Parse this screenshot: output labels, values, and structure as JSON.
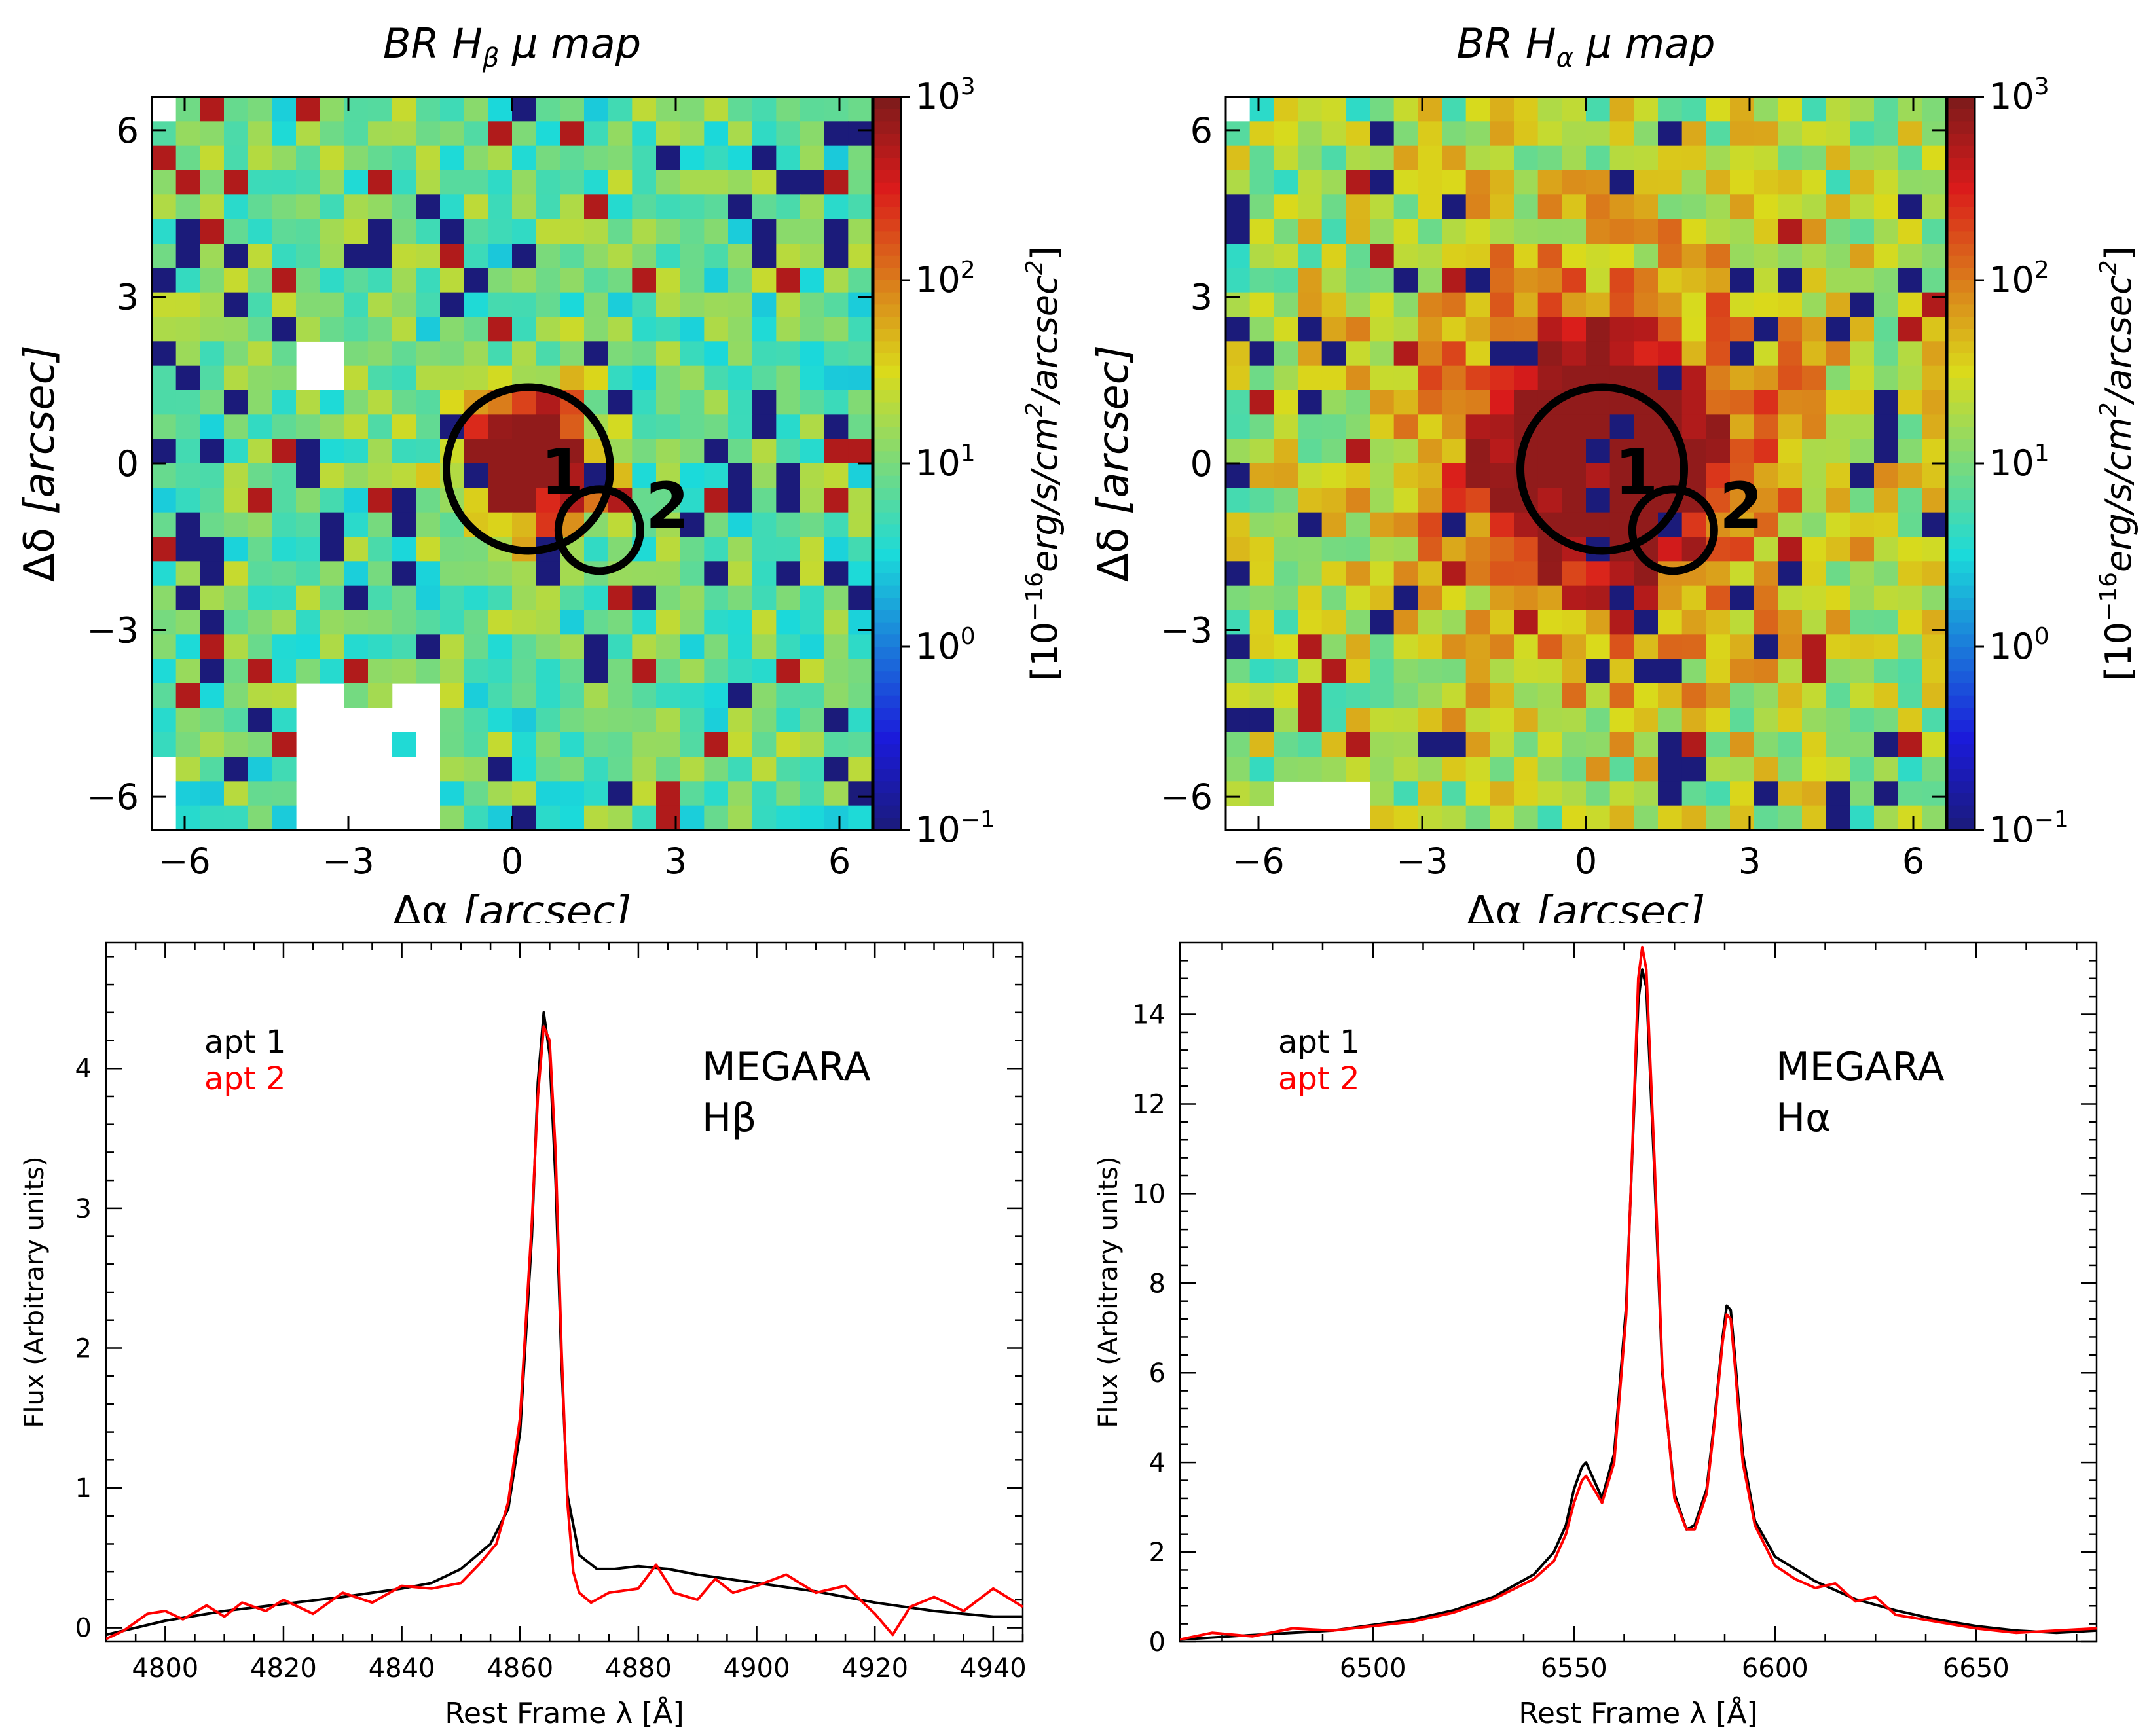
{
  "chart_data": [
    {
      "type": "heatmap",
      "title": "BR H",
      "title_sub": "β",
      "title_tail": " μ map",
      "xlabel_sym": "Δα",
      "xlabel_unit": "[arcsec]",
      "ylabel_sym": "Δδ",
      "ylabel_unit": "[arcsec]",
      "xlim": [
        -6.6,
        6.6
      ],
      "ylim": [
        -6.6,
        6.6
      ],
      "xticks": [
        -6,
        -3,
        0,
        3,
        6
      ],
      "yticks": [
        -6,
        -3,
        0,
        3,
        6
      ],
      "xtick_labels": [
        "−6",
        "−3",
        "0",
        "3",
        "6"
      ],
      "ytick_labels": [
        "−6",
        "−3",
        "0",
        "3",
        "6"
      ],
      "colorbar": {
        "label_pre": "[10",
        "label_exp": "−16",
        "label_mid": "erg/s/cm",
        "label_exp2": "2",
        "label_mid2": "/arcsec",
        "label_exp3": "2",
        "label_post": "]",
        "scale": "log",
        "range": [
          0.1,
          1000
        ],
        "ticks": [
          {
            "base": "10",
            "exp": "3"
          },
          {
            "base": "10",
            "exp": "2"
          },
          {
            "base": "10",
            "exp": "1"
          },
          {
            "base": "10",
            "exp": "0"
          },
          {
            "base": "10",
            "exp": "−1"
          }
        ],
        "colormap": "jet"
      },
      "peak_center": [
        0.3,
        0.1
      ],
      "peak_value": 250,
      "apertures": [
        {
          "label": "1",
          "x": 0.3,
          "y": -0.1,
          "r": 1.5
        },
        {
          "label": "2",
          "x": 1.6,
          "y": -1.2,
          "r": 0.75
        }
      ]
    },
    {
      "type": "heatmap",
      "title": "BR H",
      "title_sub": "α",
      "title_tail": " μ map",
      "xlabel_sym": "Δα",
      "xlabel_unit": "[arcsec]",
      "ylabel_sym": "Δδ",
      "ylabel_unit": "[arcsec]",
      "xlim": [
        -6.6,
        6.6
      ],
      "ylim": [
        -6.6,
        6.6
      ],
      "xticks": [
        -6,
        -3,
        0,
        3,
        6
      ],
      "yticks": [
        -6,
        -3,
        0,
        3,
        6
      ],
      "xtick_labels": [
        "−6",
        "−3",
        "0",
        "3",
        "6"
      ],
      "ytick_labels": [
        "−6",
        "−3",
        "0",
        "3",
        "6"
      ],
      "colorbar": {
        "label_pre": "[10",
        "label_exp": "−16",
        "label_mid": "erg/s/cm",
        "label_exp2": "2",
        "label_mid2": "/arcsec",
        "label_exp3": "2",
        "label_post": "]",
        "scale": "log",
        "range": [
          0.1,
          1000
        ],
        "ticks": [
          {
            "base": "10",
            "exp": "3"
          },
          {
            "base": "10",
            "exp": "2"
          },
          {
            "base": "10",
            "exp": "1"
          },
          {
            "base": "10",
            "exp": "0"
          },
          {
            "base": "10",
            "exp": "−1"
          }
        ],
        "colormap": "jet"
      },
      "peak_center": [
        0.3,
        0.1
      ],
      "peak_value": 400,
      "apertures": [
        {
          "label": "1",
          "x": 0.3,
          "y": -0.1,
          "r": 1.5
        },
        {
          "label": "2",
          "x": 1.6,
          "y": -1.2,
          "r": 0.75
        }
      ]
    },
    {
      "type": "line",
      "xlabel": "Rest Frame λ [Å]",
      "ylabel": "Flux (Arbitrary units)",
      "xlim": [
        4790,
        4945
      ],
      "ylim": [
        -0.1,
        4.9
      ],
      "xticks": [
        4800,
        4820,
        4840,
        4860,
        4880,
        4900,
        4920,
        4940
      ],
      "yticks": [
        0,
        1,
        2,
        3,
        4
      ],
      "annotation": [
        "MEGARA",
        "Hβ"
      ],
      "series": [
        {
          "name": "apt 1",
          "color": "#000000",
          "x": [
            4790,
            4800,
            4810,
            4820,
            4830,
            4840,
            4845,
            4850,
            4855,
            4858,
            4860,
            4862,
            4863,
            4864,
            4865,
            4866,
            4867,
            4868,
            4870,
            4873,
            4876,
            4880,
            4885,
            4890,
            4900,
            4910,
            4920,
            4930,
            4940,
            4945
          ],
          "y": [
            -0.05,
            0.05,
            0.12,
            0.17,
            0.22,
            0.28,
            0.32,
            0.42,
            0.6,
            0.85,
            1.4,
            2.8,
            3.9,
            4.4,
            4.1,
            3.2,
            1.9,
            0.95,
            0.52,
            0.42,
            0.42,
            0.44,
            0.42,
            0.38,
            0.32,
            0.26,
            0.18,
            0.12,
            0.08,
            0.08
          ]
        },
        {
          "name": "apt 2",
          "color": "#ff0000",
          "x": [
            4790,
            4793,
            4797,
            4800,
            4803,
            4807,
            4810,
            4813,
            4817,
            4820,
            4825,
            4830,
            4835,
            4840,
            4845,
            4850,
            4853,
            4856,
            4858,
            4860,
            4862,
            4863,
            4864,
            4865,
            4866,
            4867,
            4868,
            4869,
            4870,
            4872,
            4875,
            4880,
            4883,
            4886,
            4890,
            4893,
            4896,
            4900,
            4905,
            4910,
            4915,
            4920,
            4923,
            4926,
            4930,
            4935,
            4940,
            4945
          ],
          "y": [
            -0.08,
            -0.02,
            0.1,
            0.12,
            0.06,
            0.16,
            0.08,
            0.18,
            0.12,
            0.2,
            0.1,
            0.25,
            0.18,
            0.3,
            0.28,
            0.32,
            0.45,
            0.6,
            0.9,
            1.5,
            2.9,
            3.8,
            4.3,
            4.2,
            3.4,
            2.0,
            0.9,
            0.4,
            0.25,
            0.18,
            0.25,
            0.28,
            0.45,
            0.25,
            0.2,
            0.35,
            0.25,
            0.3,
            0.38,
            0.25,
            0.3,
            0.1,
            -0.05,
            0.15,
            0.22,
            0.12,
            0.28,
            0.15
          ]
        }
      ],
      "legend": [
        {
          "label": "apt 1",
          "color": "#000000"
        },
        {
          "label": "apt 2",
          "color": "#ff0000"
        }
      ]
    },
    {
      "type": "line",
      "xlabel": "Rest Frame λ [Å]",
      "ylabel": "Flux (Arbitrary units)",
      "xlim": [
        6452,
        6680
      ],
      "ylim": [
        0,
        15.6
      ],
      "xticks": [
        6500,
        6550,
        6600,
        6650
      ],
      "yticks": [
        0,
        2,
        4,
        6,
        8,
        10,
        12,
        14
      ],
      "annotation": [
        "MEGARA",
        "Hα"
      ],
      "series": [
        {
          "name": "apt 1",
          "color": "#000000",
          "x": [
            6452,
            6470,
            6490,
            6510,
            6520,
            6530,
            6540,
            6545,
            6548,
            6550,
            6552,
            6553,
            6555,
            6557,
            6560,
            6563,
            6565,
            6566,
            6567,
            6568,
            6570,
            6572,
            6575,
            6578,
            6580,
            6583,
            6585,
            6587,
            6588,
            6589,
            6590,
            6592,
            6595,
            6600,
            6610,
            6620,
            6630,
            6640,
            6650,
            6660,
            6670,
            6680
          ],
          "y": [
            0.05,
            0.15,
            0.25,
            0.5,
            0.7,
            1.0,
            1.5,
            2.0,
            2.6,
            3.4,
            3.9,
            4.0,
            3.6,
            3.2,
            4.2,
            7.5,
            12.0,
            14.3,
            15.0,
            14.6,
            10.5,
            6.0,
            3.3,
            2.5,
            2.6,
            3.4,
            5.0,
            6.8,
            7.5,
            7.4,
            6.4,
            4.2,
            2.7,
            1.9,
            1.35,
            0.95,
            0.7,
            0.5,
            0.35,
            0.25,
            0.2,
            0.25
          ]
        },
        {
          "name": "apt 2",
          "color": "#ff0000",
          "x": [
            6452,
            6460,
            6470,
            6480,
            6490,
            6500,
            6510,
            6520,
            6530,
            6540,
            6545,
            6548,
            6550,
            6552,
            6553,
            6555,
            6557,
            6560,
            6563,
            6565,
            6566,
            6567,
            6568,
            6570,
            6572,
            6575,
            6578,
            6580,
            6583,
            6585,
            6587,
            6588,
            6589,
            6590,
            6592,
            6595,
            6600,
            6605,
            6610,
            6615,
            6620,
            6625,
            6630,
            6640,
            6650,
            6660,
            6670,
            6680
          ],
          "y": [
            0.05,
            0.2,
            0.12,
            0.3,
            0.25,
            0.35,
            0.45,
            0.65,
            0.95,
            1.4,
            1.8,
            2.4,
            3.1,
            3.6,
            3.7,
            3.4,
            3.1,
            4.0,
            7.3,
            12.2,
            14.8,
            15.5,
            15.0,
            10.8,
            6.1,
            3.2,
            2.5,
            2.5,
            3.3,
            4.9,
            6.7,
            7.3,
            7.2,
            6.2,
            4.0,
            2.6,
            1.7,
            1.4,
            1.2,
            1.3,
            0.9,
            1.0,
            0.6,
            0.45,
            0.3,
            0.2,
            0.25,
            0.3
          ]
        }
      ],
      "legend": [
        {
          "label": "apt 1",
          "color": "#000000"
        },
        {
          "label": "apt 2",
          "color": "#ff0000"
        }
      ]
    }
  ]
}
